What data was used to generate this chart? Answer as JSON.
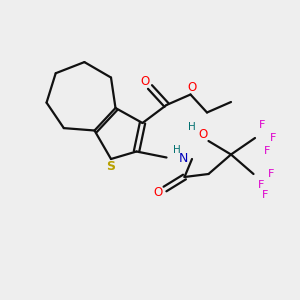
{
  "bg_color": "#eeeeee",
  "atom_colors": {
    "S": "#b8a000",
    "O": "#ff0000",
    "N": "#0000bb",
    "F": "#dd00cc",
    "H": "#007070",
    "C": "#000000"
  },
  "bond_color": "#111111",
  "bond_width": 1.6,
  "fig_size": [
    3.0,
    3.0
  ],
  "dpi": 100
}
